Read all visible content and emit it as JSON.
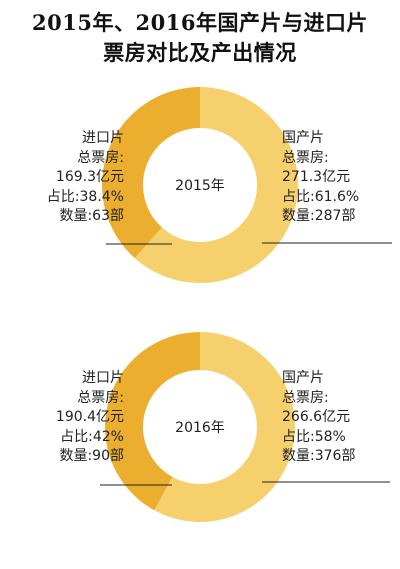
{
  "title_line1": "2015年、2016年国产片与进口片",
  "title_line2": "票房对比及产出情况",
  "colors": {
    "domestic": "#F7D06E",
    "imported": "#EBAE2E",
    "inner": "#ffffff",
    "line": "#222222"
  },
  "chart_data": [
    {
      "type": "pie",
      "center_label": "2015年",
      "categories": [
        "国产片",
        "进口片"
      ],
      "values": [
        61.6,
        38.4
      ],
      "imported": {
        "name": "进口片",
        "total_label": "总票房:",
        "total": "169.3亿元",
        "share": "占比:38.4%",
        "count": "数量:63部"
      },
      "domestic": {
        "name": "国产片",
        "total_label": "总票房:",
        "total": "271.3亿元",
        "share": "占比:61.6%",
        "count": "数量:287部"
      }
    },
    {
      "type": "pie",
      "center_label": "2016年",
      "categories": [
        "国产片",
        "进口片"
      ],
      "values": [
        58,
        42
      ],
      "imported": {
        "name": "进口片",
        "total_label": "总票房:",
        "total": "190.4亿元",
        "share": "占比:42%",
        "count": "数量:90部"
      },
      "domestic": {
        "name": "国产片",
        "total_label": "总票房:",
        "total": "266.6亿元",
        "share": "占比:58%",
        "count": "数量:376部"
      }
    }
  ]
}
